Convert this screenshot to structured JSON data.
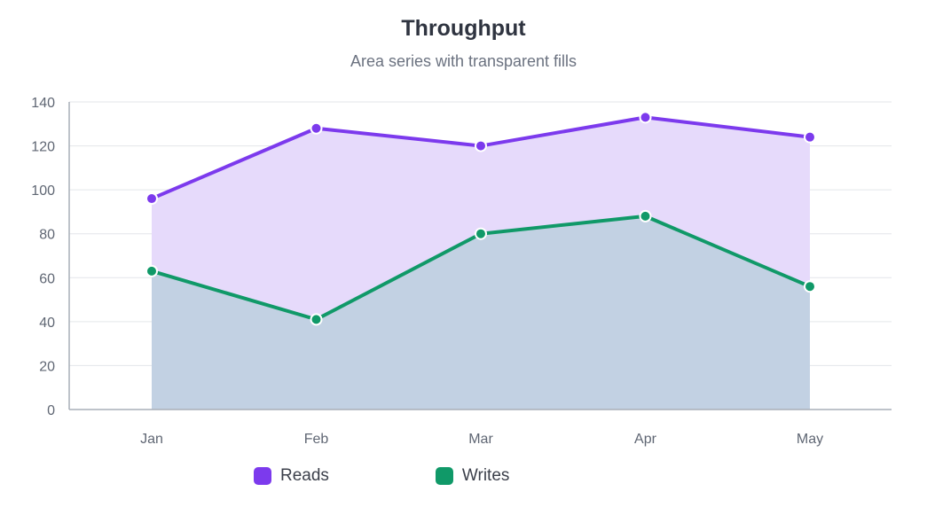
{
  "chart_data": {
    "type": "area",
    "title": "Throughput",
    "subtitle": "Area series with transparent fills",
    "categories": [
      "Jan",
      "Feb",
      "Mar",
      "Apr",
      "May"
    ],
    "series": [
      {
        "name": "Reads",
        "values": [
          96,
          128,
          120,
          133,
          124
        ],
        "color": "#7c3aed"
      },
      {
        "name": "Writes",
        "values": [
          63,
          41,
          80,
          88,
          56
        ],
        "color": "#109968"
      }
    ],
    "yticks": [
      "0",
      "20",
      "40",
      "60",
      "80",
      "100",
      "120",
      "140"
    ],
    "ylim": [
      0,
      140
    ],
    "grid": true,
    "legend_position": "bottom-left",
    "colors": {
      "reads_fill": "#e6dafb",
      "writes_fill": "#bfd0e1",
      "grid": "#e3e6ea",
      "axis": "#a9afb8"
    }
  }
}
